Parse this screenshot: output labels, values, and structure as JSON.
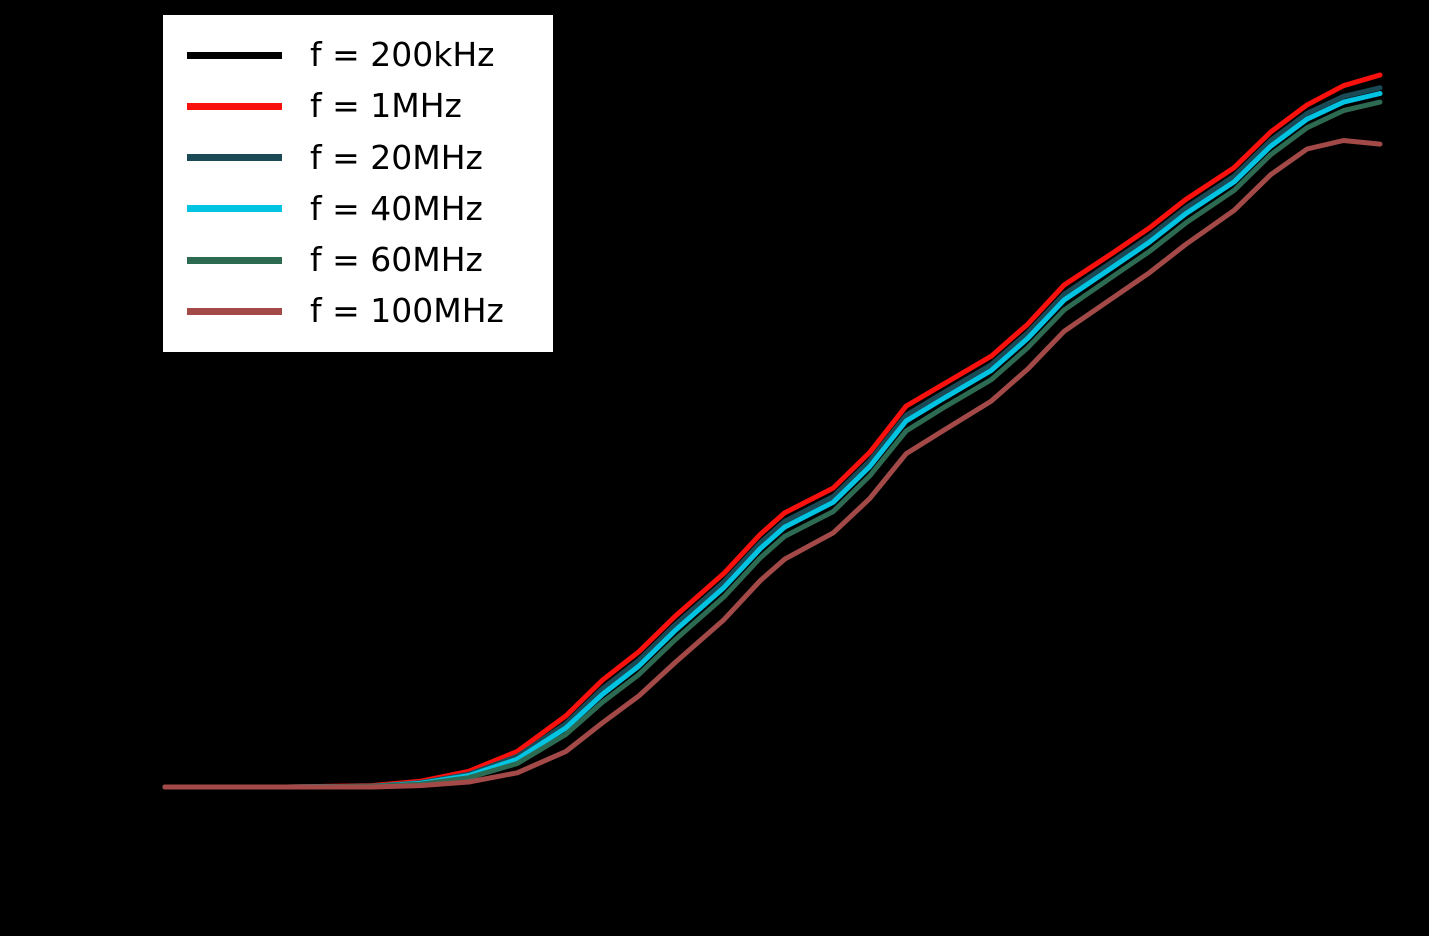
{
  "figure": {
    "background_color": "#000000",
    "note": "axes, ticks and titles are not visible (rendered black on black); only the legend and curves are visible"
  },
  "legend": {
    "position": "upper left",
    "background_color": "#ffffff",
    "text_color": "#000000"
  },
  "chart_data": {
    "type": "line",
    "title": "",
    "xlabel": "",
    "ylabel": "",
    "xlim": [
      0,
      1
    ],
    "ylim": [
      0,
      1
    ],
    "grid": false,
    "legend_position": "upper left",
    "line_width": 5,
    "series": [
      {
        "name": "f-200kHz",
        "label": "f = 200kHz",
        "color": "#000000",
        "points": [
          [
            0,
            0
          ],
          [
            0.1,
            0
          ],
          [
            0.17,
            0.002
          ],
          [
            0.21,
            0.007
          ],
          [
            0.25,
            0.02
          ],
          [
            0.29,
            0.047
          ],
          [
            0.33,
            0.095
          ],
          [
            0.36,
            0.145
          ],
          [
            0.39,
            0.185
          ],
          [
            0.42,
            0.235
          ],
          [
            0.46,
            0.295
          ],
          [
            0.49,
            0.35
          ],
          [
            0.51,
            0.38
          ],
          [
            0.55,
            0.415
          ],
          [
            0.58,
            0.465
          ],
          [
            0.61,
            0.53
          ],
          [
            0.64,
            0.56
          ],
          [
            0.68,
            0.6
          ],
          [
            0.71,
            0.645
          ],
          [
            0.74,
            0.7
          ],
          [
            0.78,
            0.745
          ],
          [
            0.81,
            0.78
          ],
          [
            0.84,
            0.82
          ],
          [
            0.88,
            0.865
          ],
          [
            0.91,
            0.915
          ],
          [
            0.94,
            0.953
          ],
          [
            0.97,
            0.978
          ],
          [
            1.0,
            0.99
          ]
        ]
      },
      {
        "name": "f-1MHz",
        "label": "f = 1MHz",
        "color": "#fa100d",
        "points": [
          [
            0,
            0
          ],
          [
            0.1,
            0
          ],
          [
            0.17,
            0.002
          ],
          [
            0.21,
            0.008
          ],
          [
            0.25,
            0.022
          ],
          [
            0.29,
            0.05
          ],
          [
            0.33,
            0.1
          ],
          [
            0.36,
            0.15
          ],
          [
            0.39,
            0.19
          ],
          [
            0.42,
            0.24
          ],
          [
            0.46,
            0.3
          ],
          [
            0.49,
            0.355
          ],
          [
            0.51,
            0.385
          ],
          [
            0.55,
            0.42
          ],
          [
            0.58,
            0.47
          ],
          [
            0.61,
            0.535
          ],
          [
            0.64,
            0.565
          ],
          [
            0.68,
            0.605
          ],
          [
            0.71,
            0.65
          ],
          [
            0.74,
            0.705
          ],
          [
            0.78,
            0.75
          ],
          [
            0.81,
            0.785
          ],
          [
            0.84,
            0.825
          ],
          [
            0.88,
            0.87
          ],
          [
            0.91,
            0.92
          ],
          [
            0.94,
            0.958
          ],
          [
            0.97,
            0.985
          ],
          [
            1.0,
            1.0
          ]
        ]
      },
      {
        "name": "f-20MHz",
        "label": "f = 20MHz",
        "color": "#1b4a57",
        "points": [
          [
            0,
            0
          ],
          [
            0.1,
            0
          ],
          [
            0.17,
            0.001
          ],
          [
            0.21,
            0.006
          ],
          [
            0.25,
            0.018
          ],
          [
            0.29,
            0.043
          ],
          [
            0.33,
            0.089
          ],
          [
            0.36,
            0.138
          ],
          [
            0.39,
            0.178
          ],
          [
            0.42,
            0.228
          ],
          [
            0.46,
            0.288
          ],
          [
            0.49,
            0.343
          ],
          [
            0.51,
            0.373
          ],
          [
            0.55,
            0.408
          ],
          [
            0.58,
            0.458
          ],
          [
            0.61,
            0.522
          ],
          [
            0.64,
            0.553
          ],
          [
            0.68,
            0.593
          ],
          [
            0.71,
            0.638
          ],
          [
            0.74,
            0.692
          ],
          [
            0.78,
            0.738
          ],
          [
            0.81,
            0.773
          ],
          [
            0.84,
            0.813
          ],
          [
            0.88,
            0.858
          ],
          [
            0.91,
            0.908
          ],
          [
            0.94,
            0.946
          ],
          [
            0.97,
            0.97
          ],
          [
            1.0,
            0.982
          ]
        ]
      },
      {
        "name": "f-40MHz",
        "label": "f = 40MHz",
        "color": "#00c4e2",
        "points": [
          [
            0,
            0
          ],
          [
            0.1,
            0
          ],
          [
            0.17,
            0.001
          ],
          [
            0.21,
            0.005
          ],
          [
            0.25,
            0.016
          ],
          [
            0.29,
            0.039
          ],
          [
            0.33,
            0.083
          ],
          [
            0.36,
            0.13
          ],
          [
            0.39,
            0.17
          ],
          [
            0.42,
            0.22
          ],
          [
            0.46,
            0.28
          ],
          [
            0.49,
            0.335
          ],
          [
            0.51,
            0.365
          ],
          [
            0.55,
            0.4
          ],
          [
            0.58,
            0.45
          ],
          [
            0.61,
            0.514
          ],
          [
            0.64,
            0.545
          ],
          [
            0.68,
            0.585
          ],
          [
            0.71,
            0.63
          ],
          [
            0.74,
            0.684
          ],
          [
            0.78,
            0.73
          ],
          [
            0.81,
            0.765
          ],
          [
            0.84,
            0.805
          ],
          [
            0.88,
            0.85
          ],
          [
            0.91,
            0.9
          ],
          [
            0.94,
            0.938
          ],
          [
            0.97,
            0.962
          ],
          [
            1.0,
            0.974
          ]
        ]
      },
      {
        "name": "f-60MHz",
        "label": "f = 60MHz",
        "color": "#2c6b52",
        "points": [
          [
            0,
            0
          ],
          [
            0.1,
            0
          ],
          [
            0.17,
            0.001
          ],
          [
            0.21,
            0.004
          ],
          [
            0.25,
            0.013
          ],
          [
            0.29,
            0.033
          ],
          [
            0.33,
            0.074
          ],
          [
            0.36,
            0.119
          ],
          [
            0.39,
            0.158
          ],
          [
            0.42,
            0.207
          ],
          [
            0.46,
            0.267
          ],
          [
            0.49,
            0.322
          ],
          [
            0.51,
            0.352
          ],
          [
            0.55,
            0.387
          ],
          [
            0.58,
            0.437
          ],
          [
            0.61,
            0.5
          ],
          [
            0.64,
            0.532
          ],
          [
            0.68,
            0.572
          ],
          [
            0.71,
            0.617
          ],
          [
            0.74,
            0.67
          ],
          [
            0.78,
            0.717
          ],
          [
            0.81,
            0.752
          ],
          [
            0.84,
            0.792
          ],
          [
            0.88,
            0.838
          ],
          [
            0.91,
            0.888
          ],
          [
            0.94,
            0.926
          ],
          [
            0.97,
            0.95
          ],
          [
            1.0,
            0.962
          ]
        ]
      },
      {
        "name": "f-100MHz",
        "label": "f = 100MHz",
        "color": "#a34a48",
        "points": [
          [
            0,
            0
          ],
          [
            0.1,
            0
          ],
          [
            0.17,
            0
          ],
          [
            0.21,
            0.002
          ],
          [
            0.25,
            0.007
          ],
          [
            0.29,
            0.02
          ],
          [
            0.33,
            0.05
          ],
          [
            0.36,
            0.09
          ],
          [
            0.39,
            0.128
          ],
          [
            0.42,
            0.175
          ],
          [
            0.46,
            0.235
          ],
          [
            0.49,
            0.29
          ],
          [
            0.51,
            0.32
          ],
          [
            0.55,
            0.357
          ],
          [
            0.58,
            0.405
          ],
          [
            0.61,
            0.468
          ],
          [
            0.64,
            0.5
          ],
          [
            0.68,
            0.542
          ],
          [
            0.71,
            0.587
          ],
          [
            0.74,
            0.64
          ],
          [
            0.78,
            0.687
          ],
          [
            0.81,
            0.722
          ],
          [
            0.84,
            0.762
          ],
          [
            0.88,
            0.81
          ],
          [
            0.91,
            0.86
          ],
          [
            0.94,
            0.896
          ],
          [
            0.97,
            0.908
          ],
          [
            1.0,
            0.903
          ]
        ]
      }
    ]
  }
}
